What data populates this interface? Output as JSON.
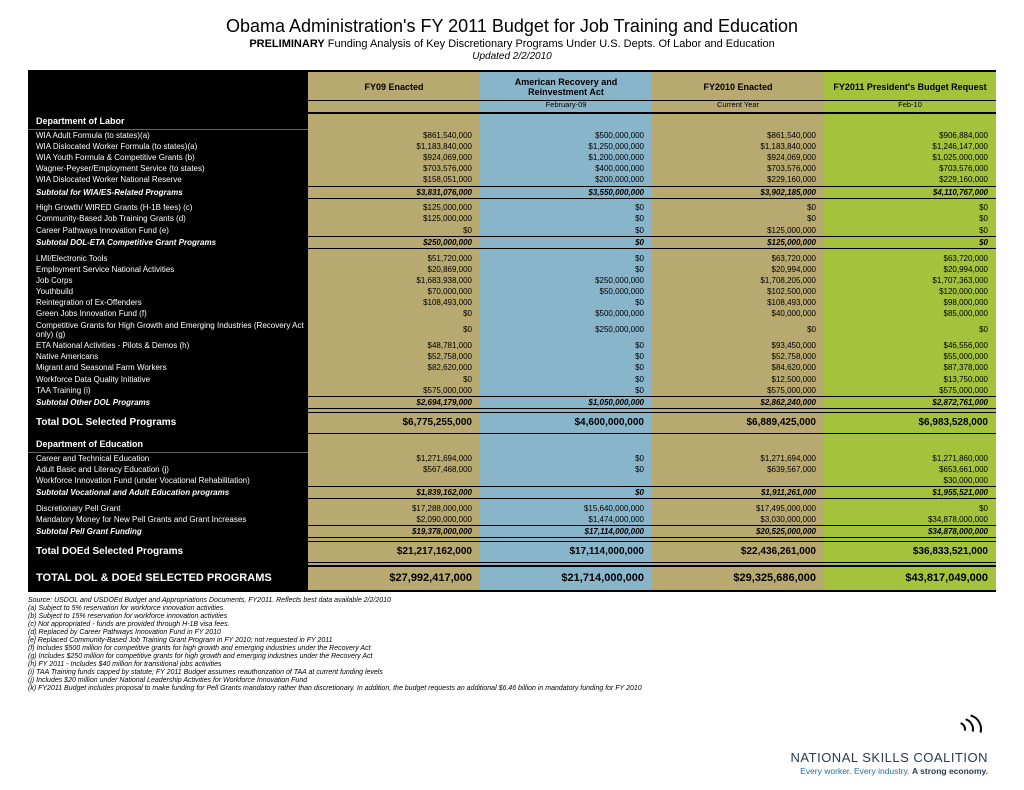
{
  "title": "Obama Administration's FY 2011 Budget for Job Training and Education",
  "subtitle_bold": "PRELIMINARY",
  "subtitle_rest": " Funding Analysis of Key Discretionary Programs Under U.S. Depts. Of Labor and Education",
  "updated": "Updated 2/2/2010",
  "colors": {
    "col_bg": [
      "#ffffff",
      "#b7a96f",
      "#89b5cb",
      "#b7a96f",
      "#a5c23d"
    ],
    "black": "#000000"
  },
  "cols": [
    {
      "h": "",
      "s": ""
    },
    {
      "h": "FY09 Enacted",
      "s": ""
    },
    {
      "h": "American Recovery and Reinvestment Act",
      "s": "February-09"
    },
    {
      "h": "FY2010 Enacted",
      "s": "Current Year"
    },
    {
      "h": "FY2011 President's Budget Request",
      "s": "Feb-10"
    }
  ],
  "sections": [
    {
      "type": "sect",
      "label": "Department of Labor"
    },
    {
      "type": "row",
      "label": "WIA Adult Formula (to states)(a)",
      "v": [
        "$861,540,000",
        "$500,000,000",
        "$861,540,000",
        "$906,884,000"
      ]
    },
    {
      "type": "row",
      "label": "WIA Dislocated Worker Formula (to states)(a)",
      "v": [
        "$1,183,840,000",
        "$1,250,000,000",
        "$1,183,840,000",
        "$1,246,147,000"
      ]
    },
    {
      "type": "row",
      "label": "WIA Youth Formula & Competitive Grants (b)",
      "v": [
        "$924,069,000",
        "$1,200,000,000",
        "$924,069,000",
        "$1,025,000,000"
      ]
    },
    {
      "type": "row",
      "label": "Wagner-Peyser/Employment Service (to states)",
      "v": [
        "$703,576,000",
        "$400,000,000",
        "$703,576,000",
        "$703,576,000"
      ]
    },
    {
      "type": "row",
      "label": "WIA Dislocated Worker National Reserve",
      "v": [
        "$158,051,000",
        "$200,000,000",
        "$229,160,000",
        "$229,160,000"
      ]
    },
    {
      "type": "subtot",
      "label": "Subtotal for WIA/ES-Related Programs",
      "v": [
        "$3,831,076,000",
        "$3,550,000,000",
        "$3,902,185,000",
        "$4,110,767,000"
      ]
    },
    {
      "type": "sp"
    },
    {
      "type": "row",
      "label": "High Growth/ WIRED Grants (H-1B fees) (c)",
      "v": [
        "$125,000,000",
        "$0",
        "$0",
        "$0"
      ]
    },
    {
      "type": "row",
      "label": "Community-Based Job Training Grants (d)",
      "v": [
        "$125,000,000",
        "$0",
        "$0",
        "$0"
      ]
    },
    {
      "type": "row",
      "label": "Career Pathways Innovation Fund (e)",
      "v": [
        "$0",
        "$0",
        "$125,000,000",
        "$0"
      ]
    },
    {
      "type": "subtot",
      "label": "Subtotal DOL-ETA Competitive Grant Programs",
      "v": [
        "$250,000,000",
        "$0",
        "$125,000,000",
        "$0"
      ]
    },
    {
      "type": "sp"
    },
    {
      "type": "row",
      "label": "LMI/Electronic Tools",
      "v": [
        "$51,720,000",
        "$0",
        "$63,720,000",
        "$63,720,000"
      ]
    },
    {
      "type": "row",
      "label": "Employment Service National Activities",
      "v": [
        "$20,869,000",
        "$0",
        "$20,994,000",
        "$20,994,000"
      ]
    },
    {
      "type": "row",
      "label": "Job Corps",
      "v": [
        "$1,683,938,000",
        "$250,000,000",
        "$1,708,205,000",
        "$1,707,363,000"
      ]
    },
    {
      "type": "row",
      "label": "Youthbuild",
      "v": [
        "$70,000,000",
        "$50,000,000",
        "$102,500,000",
        "$120,000,000"
      ]
    },
    {
      "type": "row",
      "label": "Reintegration of Ex-Offenders",
      "v": [
        "$108,493,000",
        "$0",
        "$108,493,000",
        "$98,000,000"
      ]
    },
    {
      "type": "row",
      "label": "Green Jobs Innovation Fund (f)",
      "v": [
        "$0",
        "$500,000,000",
        "$40,000,000",
        "$85,000,000"
      ]
    },
    {
      "type": "row",
      "label": "Competitive Grants for High Growth and Emerging Industries (Recovery Act only) (g)",
      "v": [
        "$0",
        "$250,000,000",
        "$0",
        "$0"
      ]
    },
    {
      "type": "row",
      "label": "ETA National Activities - Pilots & Demos (h)",
      "v": [
        "$48,781,000",
        "$0",
        "$93,450,000",
        "$46,556,000"
      ]
    },
    {
      "type": "row",
      "label": "Native Americans",
      "v": [
        "$52,758,000",
        "$0",
        "$52,758,000",
        "$55,000,000"
      ]
    },
    {
      "type": "row",
      "label": "Migrant and Seasonal Farm Workers",
      "v": [
        "$82,620,000",
        "$0",
        "$84,620,000",
        "$87,378,000"
      ]
    },
    {
      "type": "row",
      "label": "Workforce Data Quality Initiative",
      "v": [
        "$0",
        "$0",
        "$12,500,000",
        "$13,750,000"
      ]
    },
    {
      "type": "row",
      "label": "TAA Training (i)",
      "v": [
        "$575,000,000",
        "$0",
        "$575,000,000",
        "$575,000,000"
      ]
    },
    {
      "type": "subtot",
      "label": "Subtotal Other DOL Programs",
      "v": [
        "$2,694,179,000",
        "$1,050,000,000",
        "$2,862,240,000",
        "$2,872,761,000"
      ]
    },
    {
      "type": "sp"
    },
    {
      "type": "total",
      "label": "Total DOL Selected Programs",
      "v": [
        "$6,775,255,000",
        "$4,600,000,000",
        "$6,889,425,000",
        "$6,983,528,000"
      ]
    },
    {
      "type": "sp"
    },
    {
      "type": "sect",
      "label": "Department of Education"
    },
    {
      "type": "row",
      "label": "Career and Technical Education",
      "v": [
        "$1,271,694,000",
        "$0",
        "$1,271,694,000",
        "$1,271,860,000"
      ]
    },
    {
      "type": "row",
      "label": "Adult Basic and Literacy Education (j)",
      "v": [
        "$567,468,000",
        "$0",
        "$639,567,000",
        "$653,661,000"
      ]
    },
    {
      "type": "row",
      "label": "Workforce Innovation Fund (under Vocational Rehabilitation)",
      "v": [
        "",
        "",
        "",
        "$30,000,000"
      ]
    },
    {
      "type": "subtot",
      "label": "Subtotal Vocational and Adult Education programs",
      "v": [
        "$1,839,162,000",
        "$0",
        "$1,911,261,000",
        "$1,955,521,000"
      ]
    },
    {
      "type": "sp"
    },
    {
      "type": "row",
      "label": "Discretionary Pell Grant",
      "v": [
        "$17,288,000,000",
        "$15,640,000,000",
        "$17,495,000,000",
        "$0"
      ]
    },
    {
      "type": "row",
      "label": "Mandatory Money for New Pell Grants and Grant Increases",
      "v": [
        "$2,090,000,000",
        "$1,474,000,000",
        "$3,030,000,000",
        "$34,878,000,000"
      ]
    },
    {
      "type": "subtot",
      "label": "Subtotal Pell Grant Funding",
      "v": [
        "$19,378,000,000",
        "$17,114,000,000",
        "$20,525,000,000",
        "$34,878,000,000"
      ]
    },
    {
      "type": "sp"
    },
    {
      "type": "total",
      "label": "Total DOEd Selected Programs",
      "v": [
        "$21,217,162,000",
        "$17,114,000,000",
        "$22,436,261,000",
        "$36,833,521,000"
      ]
    },
    {
      "type": "sp"
    },
    {
      "type": "grand",
      "label": "TOTAL DOL & DOEd SELECTED PROGRAMS",
      "v": [
        "$27,992,417,000",
        "$21,714,000,000",
        "$29,325,686,000",
        "$43,817,049,000"
      ]
    }
  ],
  "notes": [
    "Source:  USDOL and USDOEd Budget and Appropriations Documents, FY2011. Reflects best data available 2/2/2010",
    "(a) Subject to 5% reservation for workforce innovation activities",
    "(b) Subject to 15% reservation for workforce innovation activities",
    "(c) Not appropriated - funds are provided through H-1B visa fees.",
    "(d) Replaced by Career Pathways Innovation Fund in FY 2010",
    "[e] Replaced Community-Based Job Training Grant Program in FY 2010; not requested in FY 2011",
    "(f) Includes $500 million for competitive grants for high growth and emerging industries under the Recovery Act",
    "(g) Includes $250 million for competitive grants for high growth and emerging industries under the Recovery Act",
    "(h) FY 2011 - Includes $40 million for transitional jobs activities",
    "(i) TAA Training funds capped by statute; FY 2011 Budget assumes reauthorization of TAA at current funding levels",
    "(j) Includes $20 million under National Leadership Activities for Workforce Innovation Fund",
    "(k) FY2011 Budget includes proposal to make funding for Pell Grants mandatory rather than discretionary. In addition, the budget requests an additional $6.46 billion in mandatory funding for FY 2010"
  ],
  "logo": {
    "name": "NATIONAL SKILLS COALITION",
    "tag1": "Every worker. Every industry. ",
    "tag2": "A strong economy."
  }
}
